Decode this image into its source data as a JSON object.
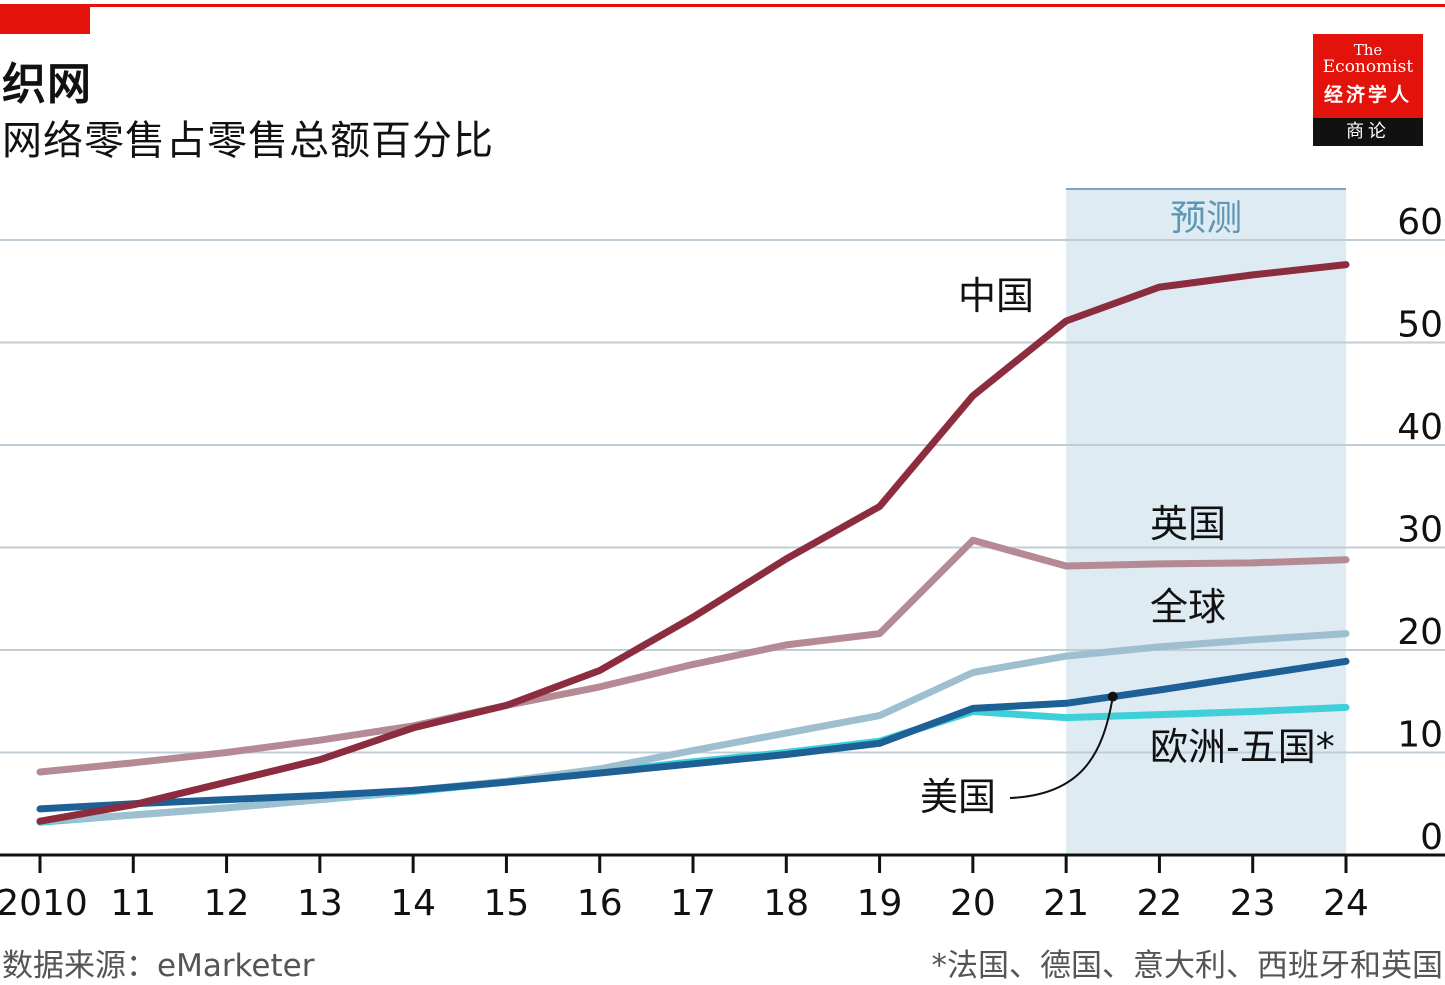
{
  "header": {
    "title": "织网",
    "subtitle": "网络零售占零售总额百分比"
  },
  "logo": {
    "line1": "The",
    "line2": "Economist",
    "line3": "经济学人",
    "line4": "商论"
  },
  "footer": {
    "source": "数据来源：eMarketer",
    "note": "*法国、德国、意大利、西班牙和英国"
  },
  "colors": {
    "brand_red": "#e3120b",
    "china": "#8c2c3f",
    "uk": "#b58a95",
    "global": "#9dbfd0",
    "usa": "#1d6096",
    "eu5": "#3ecfd8",
    "forecast_band": "#deebf2",
    "grid": "#c0ccd6"
  },
  "chart_data": {
    "type": "line",
    "title": "网络零售占零售总额百分比",
    "xlabel": "",
    "ylabel": "",
    "x": [
      2010,
      2011,
      2012,
      2013,
      2014,
      2015,
      2016,
      2017,
      2018,
      2019,
      2020,
      2021,
      2022,
      2023,
      2024
    ],
    "x_tick_labels": [
      "2010",
      "11",
      "12",
      "13",
      "14",
      "15",
      "16",
      "17",
      "18",
      "19",
      "20",
      "21",
      "22",
      "23",
      "24"
    ],
    "y_ticks": [
      0,
      10,
      20,
      30,
      40,
      50,
      60
    ],
    "ylim": [
      0,
      60
    ],
    "grid": true,
    "forecast": {
      "label": "预测",
      "from": 2021,
      "to": 2024
    },
    "series": [
      {
        "name": "中国",
        "key": "china",
        "values": [
          3.3,
          4.9,
          7.1,
          9.3,
          12.4,
          14.6,
          18.0,
          23.2,
          28.9,
          34.0,
          44.8,
          52.1,
          55.4,
          56.6,
          57.6
        ]
      },
      {
        "name": "英国",
        "key": "uk",
        "values": [
          8.1,
          9.0,
          10.0,
          11.2,
          12.6,
          14.6,
          16.4,
          18.6,
          20.5,
          21.6,
          30.7,
          28.2,
          28.4,
          28.5,
          28.8
        ]
      },
      {
        "name": "全球",
        "key": "global",
        "values": [
          3.3,
          3.9,
          4.6,
          5.4,
          6.3,
          7.2,
          8.4,
          10.2,
          11.9,
          13.6,
          17.8,
          19.4,
          20.3,
          21.0,
          21.6
        ]
      },
      {
        "name": "美国",
        "key": "usa",
        "values": [
          4.5,
          5.0,
          5.4,
          5.8,
          6.3,
          7.1,
          8.0,
          8.9,
          9.8,
          10.9,
          14.3,
          14.8,
          16.1,
          17.5,
          18.9
        ]
      },
      {
        "name": "欧洲-五国*",
        "key": "eu5",
        "values": [
          3.2,
          3.9,
          4.6,
          5.4,
          6.2,
          7.1,
          8.1,
          9.1,
          10.0,
          11.1,
          14.0,
          13.4,
          13.7,
          14.0,
          14.4
        ]
      }
    ]
  }
}
